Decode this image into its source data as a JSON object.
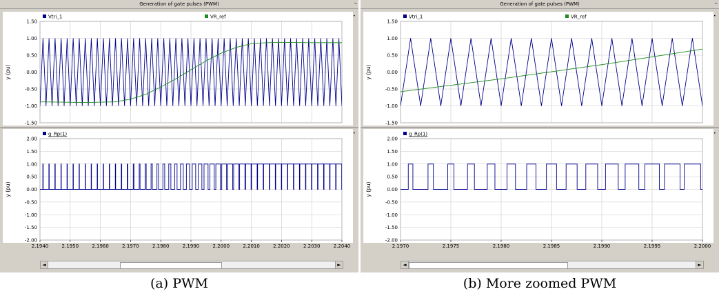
{
  "panels": [
    {
      "id": "a",
      "title": "Generation of gate pulses (PWM)",
      "caption": "(a) PWM",
      "min_label": "–",
      "scroll_left": "◄",
      "scroll_right": "►",
      "scroll_thumb_fraction": [
        0.25,
        0.6
      ]
    },
    {
      "id": "b",
      "title": "Generation of gate pulses (PWM)",
      "caption": "(b) More zoomed PWM",
      "min_label": "–",
      "scroll_left": "◄",
      "scroll_right": "►",
      "scroll_thumb_fraction": [
        0.0,
        0.55
      ]
    }
  ],
  "chart_data": [
    {
      "panel": "a",
      "subplot": "top",
      "type": "line",
      "ylabel": "y (pu)",
      "ylim": [
        -1.5,
        1.5
      ],
      "yticks": [
        "1.50",
        "1.00",
        "0.50",
        "0.00",
        "-0.50",
        "-1.00",
        "-1.50"
      ],
      "xlim": [
        2.194,
        2.204
      ],
      "grid": true,
      "legend": [
        "Vtri_1",
        "VR_ref"
      ],
      "series": [
        {
          "name": "Vtri_1",
          "color": "#00008b",
          "kind": "triangle",
          "min": -1.0,
          "max": 1.0,
          "carrier_period": 0.0002,
          "x_start": 2.194,
          "x_end": 2.204
        },
        {
          "name": "VR_ref",
          "color": "#1e8c1e",
          "kind": "points",
          "x": [
            2.194,
            2.1955,
            2.1965,
            2.197,
            2.1975,
            2.198,
            2.1985,
            2.199,
            2.1995,
            2.2,
            2.2005,
            2.201,
            2.2015,
            2.202,
            2.203,
            2.204
          ],
          "y": [
            -0.88,
            -0.9,
            -0.88,
            -0.8,
            -0.66,
            -0.44,
            -0.2,
            0.07,
            0.33,
            0.56,
            0.73,
            0.84,
            0.87,
            0.88,
            0.87,
            0.87
          ]
        }
      ]
    },
    {
      "panel": "a",
      "subplot": "bottom",
      "type": "line",
      "ylabel": "y (pu)",
      "ylim": [
        -2.0,
        2.0
      ],
      "yticks": [
        "2.00",
        "1.50",
        "1.00",
        "0.50",
        "0.00",
        "-0.50",
        "-1.00",
        "-1.50",
        "-2.00"
      ],
      "xlim": [
        2.194,
        2.204
      ],
      "xticks": [
        "2.1940",
        "2.1950",
        "2.1960",
        "2.1970",
        "2.1980",
        "2.1990",
        "2.2000",
        "2.2010",
        "2.2020",
        "2.2030",
        "2.2040"
      ],
      "grid": true,
      "legend": [
        "g_Rp(1)"
      ],
      "series": [
        {
          "name": "g_Rp(1)",
          "color": "#00008b",
          "kind": "pwm",
          "low": 0.0,
          "high": 1.0,
          "carrier_period": 0.0002,
          "x_start": 2.194,
          "x_end": 2.204,
          "duty_x": [
            2.194,
            2.1955,
            2.1965,
            2.197,
            2.1975,
            2.198,
            2.1985,
            2.199,
            2.1995,
            2.2,
            2.2005,
            2.201,
            2.2015,
            2.202,
            2.203,
            2.204
          ],
          "duty": [
            0.06,
            0.05,
            0.06,
            0.1,
            0.17,
            0.28,
            0.4,
            0.54,
            0.67,
            0.78,
            0.86,
            0.92,
            0.93,
            0.94,
            0.93,
            0.93
          ]
        }
      ]
    },
    {
      "panel": "b",
      "subplot": "top",
      "type": "line",
      "ylabel": "y (pu)",
      "ylim": [
        -1.5,
        1.5
      ],
      "yticks": [
        "1.50",
        "1.00",
        "0.50",
        "0.00",
        "-0.50",
        "-1.00",
        "-1.50"
      ],
      "xlim": [
        2.197,
        2.2
      ],
      "grid": true,
      "legend": [
        "Vtri_1",
        "VR_ref"
      ],
      "series": [
        {
          "name": "Vtri_1",
          "color": "#00008b",
          "kind": "triangle",
          "min": -1.0,
          "max": 1.0,
          "carrier_period": 0.0002,
          "x_start": 2.197,
          "x_end": 2.2
        },
        {
          "name": "VR_ref",
          "color": "#1e8c1e",
          "kind": "points",
          "x": [
            2.197,
            2.198,
            2.199,
            2.2
          ],
          "y": [
            -0.58,
            -0.2,
            0.22,
            0.68
          ]
        }
      ]
    },
    {
      "panel": "b",
      "subplot": "bottom",
      "type": "line",
      "ylabel": "y (pu)",
      "ylim": [
        -2.0,
        2.0
      ],
      "yticks": [
        "2.00",
        "1.50",
        "1.00",
        "0.50",
        "0.00",
        "-0.50",
        "-1.00",
        "-1.50",
        "-2.00"
      ],
      "xlim": [
        2.197,
        2.2
      ],
      "xticks": [
        "2.1970",
        "2.1975",
        "2.1980",
        "2.1985",
        "2.1990",
        "2.1995",
        "2.2000"
      ],
      "grid": true,
      "legend": [
        "g_Rp(1)"
      ],
      "series": [
        {
          "name": "g_Rp(1)",
          "color": "#00008b",
          "kind": "pwm",
          "low": 0.0,
          "high": 1.0,
          "carrier_period": 0.0002,
          "x_start": 2.197,
          "x_end": 2.2,
          "duty_x": [
            2.197,
            2.198,
            2.199,
            2.2
          ],
          "duty": [
            0.21,
            0.4,
            0.61,
            0.84
          ]
        }
      ]
    }
  ]
}
